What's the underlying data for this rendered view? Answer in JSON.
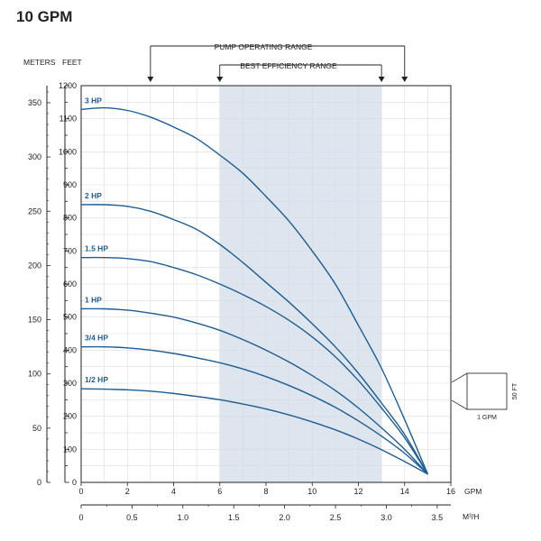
{
  "title": "10 GPM",
  "colors": {
    "curve": "#1f5c92",
    "label": "#1f5c92",
    "band": "#dde6ef",
    "grid": "#dcdcdc",
    "axis": "#222222"
  },
  "units": {
    "meters": "METERS",
    "feet": "FEET",
    "gpm": "GPM",
    "m3h": "M³/H"
  },
  "ranges": {
    "operating_label": "PUMP OPERATING RANGE",
    "operating": [
      3,
      14
    ],
    "efficiency_label": "BEST EFFICIENCY RANGE",
    "efficiency": [
      6,
      13
    ]
  },
  "scale_box": {
    "flow_label": "1 GPM",
    "head_label": "50 FT"
  },
  "chart_data": {
    "type": "line",
    "title": "10 GPM",
    "xlabel": "GPM",
    "ylabel": "FEET",
    "xlim": [
      0,
      16
    ],
    "ylim": [
      0,
      1200
    ],
    "x_ticks": [
      0,
      2,
      4,
      6,
      8,
      10,
      12,
      14,
      16
    ],
    "y_ticks": [
      0,
      100,
      200,
      300,
      400,
      500,
      600,
      700,
      800,
      900,
      1000,
      1100,
      1200
    ],
    "secondary_x": {
      "label": "M³/H",
      "ticks": [
        "0",
        "0.5",
        "1.0",
        "1.5",
        "2.0",
        "2.5",
        "3.0",
        "3.5"
      ],
      "values": [
        0,
        0.5,
        1.0,
        1.5,
        2.0,
        2.5,
        3.0,
        3.5
      ]
    },
    "secondary_y": {
      "label": "METERS",
      "ticks": [
        "0",
        "50",
        "100",
        "150",
        "200",
        "250",
        "300",
        "350"
      ],
      "values": [
        0,
        50,
        100,
        150,
        200,
        250,
        300,
        350
      ]
    },
    "grid": true,
    "series": [
      {
        "name": "3 HP",
        "x": [
          0,
          1,
          2,
          3,
          4,
          5,
          6,
          7,
          8,
          9,
          10,
          11,
          12,
          13,
          14,
          15
        ],
        "y": [
          1128,
          1133,
          1125,
          1105,
          1075,
          1040,
          990,
          935,
          865,
          790,
          700,
          600,
          475,
          345,
          190,
          25
        ]
      },
      {
        "name": "2 HP",
        "x": [
          0,
          1,
          2,
          3,
          4,
          5,
          6,
          7,
          8,
          9,
          10,
          11,
          12,
          13,
          14,
          15
        ],
        "y": [
          840,
          840,
          835,
          820,
          795,
          765,
          720,
          665,
          605,
          545,
          480,
          410,
          330,
          240,
          145,
          25
        ]
      },
      {
        "name": "1.5 HP",
        "x": [
          0,
          1,
          2,
          3,
          4,
          5,
          6,
          7,
          8,
          9,
          10,
          11,
          12,
          13,
          14,
          15
        ],
        "y": [
          680,
          680,
          677,
          668,
          650,
          628,
          600,
          568,
          532,
          490,
          440,
          380,
          308,
          225,
          135,
          25
        ]
      },
      {
        "name": "1 HP",
        "x": [
          0,
          1,
          2,
          3,
          4,
          5,
          6,
          7,
          8,
          9,
          10,
          11,
          12,
          13,
          14,
          15
        ],
        "y": [
          525,
          525,
          521,
          512,
          500,
          482,
          460,
          432,
          400,
          364,
          323,
          278,
          225,
          165,
          100,
          25
        ]
      },
      {
        "name": "3/4 HP",
        "x": [
          0,
          1,
          2,
          3,
          4,
          5,
          6,
          7,
          8,
          9,
          10,
          11,
          12,
          13,
          14,
          15
        ],
        "y": [
          410,
          410,
          407,
          400,
          390,
          377,
          362,
          343,
          320,
          293,
          262,
          227,
          186,
          140,
          88,
          25
        ]
      },
      {
        "name": "1/2 HP",
        "x": [
          0,
          1,
          2,
          3,
          4,
          5,
          6,
          7,
          8,
          9,
          10,
          11,
          12,
          13,
          14,
          15
        ],
        "y": [
          283,
          282,
          280,
          276,
          269,
          260,
          250,
          237,
          222,
          204,
          183,
          159,
          131,
          99,
          63,
          25
        ]
      }
    ]
  }
}
